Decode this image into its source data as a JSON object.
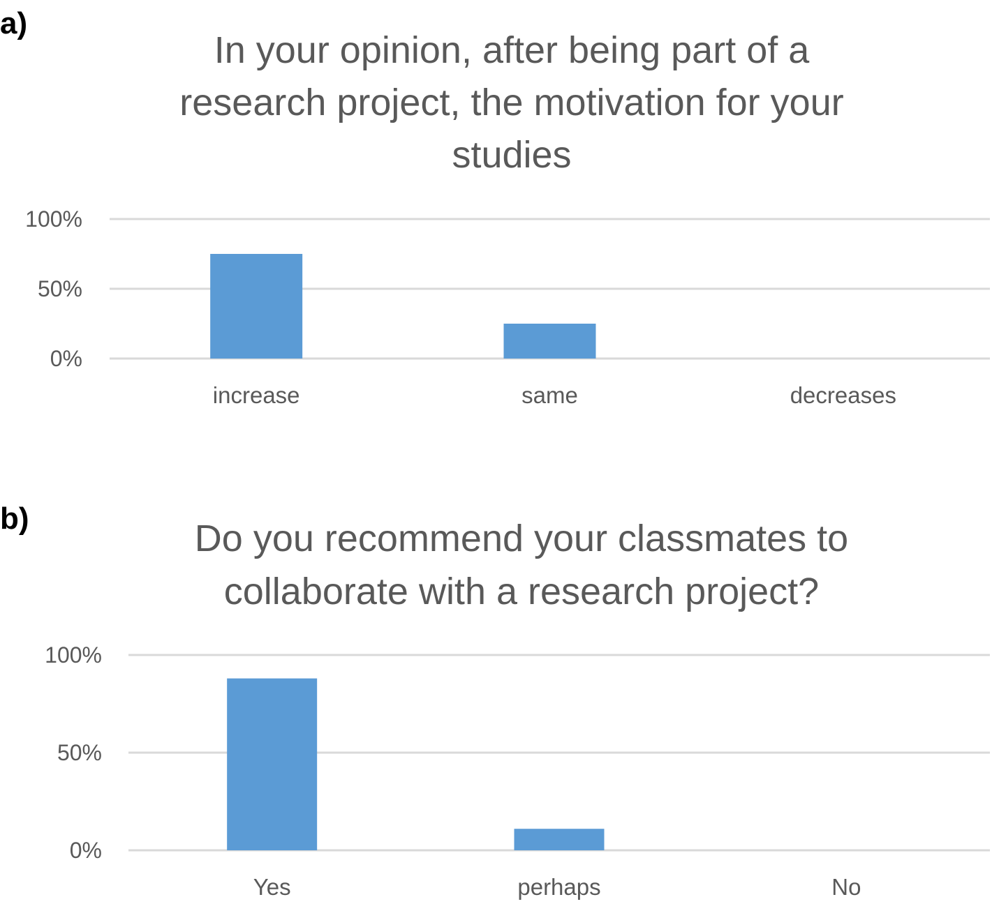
{
  "colors": {
    "bar": "#5b9bd5",
    "grid": "#d9d9d9",
    "text": "#595959"
  },
  "chart_data": [
    {
      "type": "bar",
      "panel_label": "a)",
      "title_lines": [
        "In your opinion, after being part of a",
        "research project, the motivation for your",
        "studies"
      ],
      "categories": [
        "increase",
        "same",
        "decreases"
      ],
      "values": [
        75,
        25,
        0
      ],
      "yticks": [
        "0%",
        "50%",
        "100%"
      ],
      "ylim": [
        0,
        100
      ],
      "xlabel": "",
      "ylabel": "",
      "grid": true,
      "legend": "none"
    },
    {
      "type": "bar",
      "panel_label": "b)",
      "title_lines": [
        "Do you recommend your classmates to",
        "collaborate with a research project?"
      ],
      "categories": [
        "Yes",
        "perhaps",
        "No"
      ],
      "values": [
        88,
        11,
        0
      ],
      "yticks": [
        "0%",
        "50%",
        "100%"
      ],
      "ylim": [
        0,
        100
      ],
      "xlabel": "",
      "ylabel": "",
      "grid": true,
      "legend": "none"
    }
  ]
}
